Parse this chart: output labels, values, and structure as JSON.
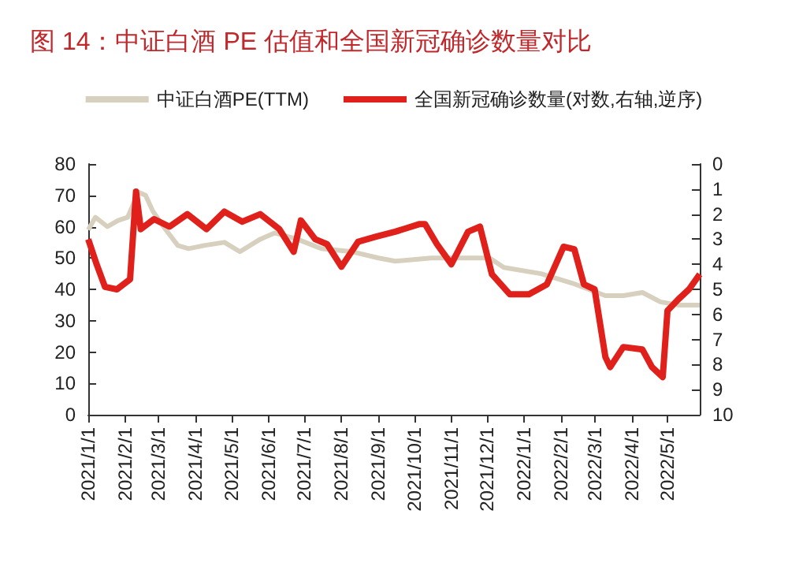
{
  "chart_data": {
    "type": "line",
    "title": "图 14：中证白酒 PE 估值和全国新冠确诊数量对比",
    "legend": "top",
    "grid": false,
    "marker": "none",
    "line_style": "solid",
    "xlim": [
      "2021-01-01",
      "2022-05-28"
    ],
    "xticks": [
      {
        "value": "2021-01-01",
        "label": "2021/1/1"
      },
      {
        "value": "2021-02-01",
        "label": "2021/2/1"
      },
      {
        "value": "2021-03-01",
        "label": "2021/3/1"
      },
      {
        "value": "2021-04-01",
        "label": "2021/4/1"
      },
      {
        "value": "2021-05-01",
        "label": "2021/5/1"
      },
      {
        "value": "2021-06-01",
        "label": "2021/6/1"
      },
      {
        "value": "2021-07-01",
        "label": "2021/7/1"
      },
      {
        "value": "2021-08-01",
        "label": "2021/8/1"
      },
      {
        "value": "2021-09-01",
        "label": "2021/9/1"
      },
      {
        "value": "2021-10-01",
        "label": "2021/10/1"
      },
      {
        "value": "2021-11-01",
        "label": "2021/11/1"
      },
      {
        "value": "2021-12-01",
        "label": "2021/12/1"
      },
      {
        "value": "2022-01-01",
        "label": "2022/1/1"
      },
      {
        "value": "2022-02-01",
        "label": "2022/2/1"
      },
      {
        "value": "2022-03-01",
        "label": "2022/3/1"
      },
      {
        "value": "2022-04-01",
        "label": "2022/4/1"
      },
      {
        "value": "2022-05-01",
        "label": "2022/5/1"
      }
    ],
    "ylim": [
      0,
      80
    ],
    "yticks": [
      0,
      10,
      20,
      30,
      40,
      50,
      60,
      70,
      80
    ],
    "y2lim": [
      10,
      0
    ],
    "y2ticks": [
      0,
      1,
      2,
      3,
      4,
      5,
      6,
      7,
      8,
      9,
      10
    ],
    "series": [
      {
        "name": "中证白酒PE(TTM)",
        "color": "#d8d0bf",
        "x": [
          "2021-01-01",
          "2021-01-07",
          "2021-01-17",
          "2021-01-26",
          "2021-02-03",
          "2021-02-12",
          "2021-02-18",
          "2021-02-24",
          "2021-03-05",
          "2021-03-17",
          "2021-03-26",
          "2021-04-08",
          "2021-04-25",
          "2021-05-08",
          "2021-05-25",
          "2021-06-06",
          "2021-06-25",
          "2021-07-15",
          "2021-08-10",
          "2021-09-01",
          "2021-09-15",
          "2021-10-15",
          "2021-11-10",
          "2021-12-03",
          "2021-12-15",
          "2022-01-15",
          "2022-02-10",
          "2022-03-10",
          "2022-03-25",
          "2022-04-10",
          "2022-04-25",
          "2022-05-10",
          "2022-05-28"
        ],
        "values": [
          59,
          63,
          60,
          62,
          63,
          71,
          70,
          65,
          60,
          54,
          53,
          54,
          55,
          52,
          56,
          58,
          56,
          53,
          52,
          50,
          49,
          50,
          50,
          50,
          47,
          45,
          42,
          38,
          38,
          39,
          36,
          35,
          35
        ]
      },
      {
        "name": "全国新冠确诊数量(对数,右轴,逆序)",
        "color": "#e0201b",
        "axis": "y2",
        "x": [
          "2021-01-01",
          "2021-01-08",
          "2021-01-15",
          "2021-01-25",
          "2021-02-05",
          "2021-02-10",
          "2021-02-14",
          "2021-02-25",
          "2021-03-10",
          "2021-03-25",
          "2021-04-10",
          "2021-04-25",
          "2021-05-10",
          "2021-05-25",
          "2021-06-10",
          "2021-06-22",
          "2021-06-28",
          "2021-07-10",
          "2021-07-20",
          "2021-08-01",
          "2021-08-15",
          "2021-08-30",
          "2021-09-15",
          "2021-10-05",
          "2021-10-10",
          "2021-10-20",
          "2021-11-01",
          "2021-11-15",
          "2021-11-25",
          "2021-12-05",
          "2021-12-20",
          "2022-01-05",
          "2022-01-20",
          "2022-02-03",
          "2022-02-12",
          "2022-02-20",
          "2022-03-01",
          "2022-03-10",
          "2022-03-14",
          "2022-03-25",
          "2022-04-10",
          "2022-04-18",
          "2022-04-27",
          "2022-05-01",
          "2022-05-10",
          "2022-05-19",
          "2022-05-28"
        ],
        "values": [
          3.0,
          4.0,
          4.9,
          5.0,
          4.6,
          1.1,
          2.6,
          2.2,
          2.5,
          2.0,
          2.6,
          1.9,
          2.3,
          2.0,
          2.6,
          3.5,
          2.25,
          3.0,
          3.2,
          4.1,
          3.1,
          2.9,
          2.7,
          2.4,
          2.4,
          3.2,
          4.0,
          2.7,
          2.5,
          4.4,
          5.2,
          5.2,
          4.8,
          3.3,
          3.4,
          4.8,
          5.0,
          7.7,
          8.1,
          7.3,
          7.4,
          8.1,
          8.5,
          5.85,
          5.4,
          5.0,
          4.4
        ]
      }
    ]
  }
}
